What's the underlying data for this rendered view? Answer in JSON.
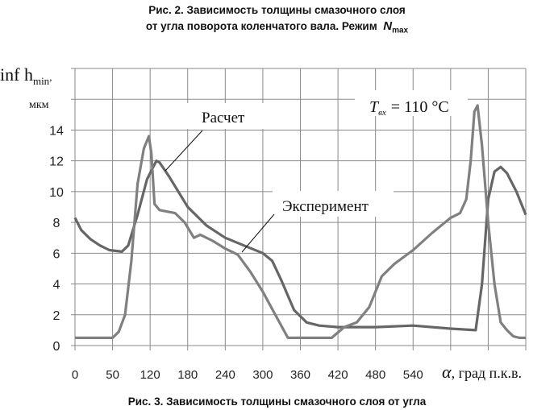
{
  "top_caption": {
    "line1": "Рис. 2. Зависимость толщины смазочного слоя",
    "line2": "от угла поворота коленчатого вала. Режим",
    "mode_symbol": "N",
    "mode_sub": "max"
  },
  "bottom_caption": "Рис. 3. Зависимость толщины смазочного слоя от угла",
  "chart_data": {
    "type": "line",
    "ylabel": {
      "main": "inf h",
      "sub": "min",
      "unit": "мкм"
    },
    "xlabel": {
      "symbol": "α",
      "text": ", град п.к.в."
    },
    "annotation": {
      "T": "T",
      "sub": "вх",
      "value": "= 110 °C"
    },
    "xlim": [
      0,
      720
    ],
    "ylim": [
      0,
      18
    ],
    "grid": true,
    "x_ticks": [
      "0",
      "50",
      "120",
      "180",
      "240",
      "300",
      "360",
      "420",
      "480",
      "540"
    ],
    "y_ticks": [
      "0",
      "2",
      "4",
      "6",
      "8",
      "10",
      "12",
      "14"
    ],
    "series": [
      {
        "name": "Расчет",
        "color": "#666666",
        "x": [
          0,
          10,
          25,
          40,
          55,
          75,
          85,
          100,
          115,
          130,
          135,
          150,
          180,
          210,
          240,
          270,
          300,
          315,
          330,
          350,
          370,
          390,
          420,
          480,
          540,
          600,
          640,
          650,
          660,
          670,
          680,
          690,
          705,
          720
        ],
        "y": [
          8.3,
          7.5,
          6.9,
          6.5,
          6.2,
          6.1,
          6.5,
          8.5,
          10.8,
          12,
          11.9,
          11,
          9,
          7.8,
          7,
          6.5,
          6,
          5.5,
          4.2,
          2.3,
          1.5,
          1.3,
          1.2,
          1.2,
          1.3,
          1.1,
          1.0,
          4,
          9.5,
          11.3,
          11.6,
          11.2,
          10,
          8.5
        ]
      },
      {
        "name": "Эксперимент",
        "color": "#808080",
        "x": [
          0,
          60,
          70,
          80,
          90,
          100,
          110,
          118,
          122,
          127,
          135,
          160,
          175,
          190,
          200,
          220,
          240,
          260,
          280,
          300,
          320,
          340,
          360,
          380,
          410,
          430,
          450,
          470,
          490,
          510,
          540,
          570,
          600,
          615,
          625,
          632,
          638,
          643,
          650,
          660,
          670,
          680,
          690,
          700,
          710,
          720
        ],
        "y": [
          0.5,
          0.5,
          0.9,
          2,
          5.5,
          10.5,
          12.8,
          13.6,
          12.5,
          9.2,
          8.8,
          8.6,
          8,
          7.0,
          7.2,
          6.8,
          6.3,
          5.9,
          4.8,
          3.5,
          2,
          0.5,
          0.5,
          0.5,
          0.5,
          1.2,
          1.5,
          2.5,
          4.5,
          5.3,
          6.2,
          7.3,
          8.3,
          8.6,
          9.5,
          12,
          15.2,
          15.6,
          13,
          8,
          4,
          1.5,
          1.0,
          0.6,
          0.5,
          0.5
        ]
      }
    ]
  }
}
